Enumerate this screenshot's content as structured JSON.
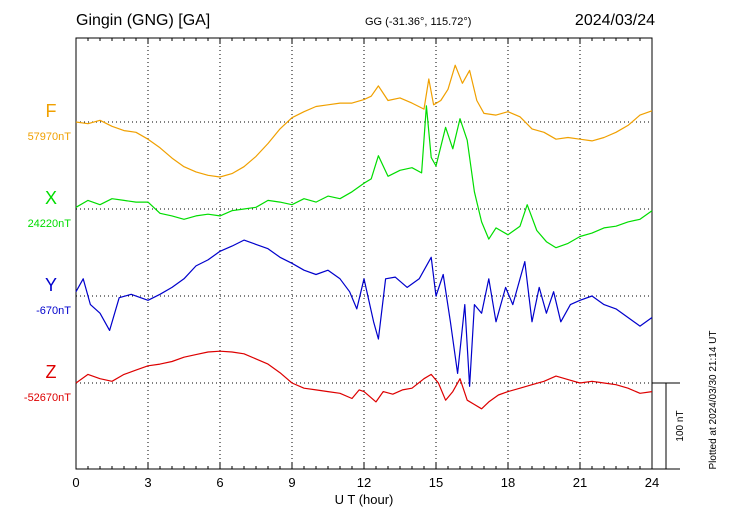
{
  "header": {
    "station": "Gingin (GNG)  [GA]",
    "coords": "GG (-31.36°, 115.72°)",
    "date": "2024/03/24"
  },
  "footer": {
    "xlabel": "U T (hour)",
    "scale_label": "100 nT",
    "plotted": "Plotted at 2024/03/30 21:14 UT"
  },
  "chart_data": {
    "type": "line",
    "title": "Gingin (GNG)  [GA]",
    "xlabel": "U T (hour)",
    "ylabel": "",
    "xlim": [
      0,
      24
    ],
    "xticks": [
      "0",
      "3",
      "6",
      "9",
      "12",
      "15",
      "18",
      "21",
      "24"
    ],
    "grid": true,
    "scale_bar_nT": 100,
    "series": [
      {
        "name": "F",
        "baseline_label": "57970nT",
        "color": "#f0a000",
        "baseline_nT": 57970,
        "points": [
          [
            0,
            57970
          ],
          [
            0.5,
            57968
          ],
          [
            1,
            57972
          ],
          [
            1.5,
            57965
          ],
          [
            2,
            57960
          ],
          [
            2.5,
            57958
          ],
          [
            3,
            57950
          ],
          [
            3.5,
            57940
          ],
          [
            4,
            57928
          ],
          [
            4.5,
            57918
          ],
          [
            5,
            57912
          ],
          [
            5.5,
            57908
          ],
          [
            6,
            57906
          ],
          [
            6.5,
            57910
          ],
          [
            7,
            57918
          ],
          [
            7.5,
            57930
          ],
          [
            8,
            57945
          ],
          [
            8.5,
            57962
          ],
          [
            9,
            57975
          ],
          [
            9.5,
            57982
          ],
          [
            10,
            57988
          ],
          [
            10.5,
            57990
          ],
          [
            11,
            57992
          ],
          [
            11.5,
            57992
          ],
          [
            12,
            57996
          ],
          [
            12.3,
            58000
          ],
          [
            12.6,
            58012
          ],
          [
            13,
            57995
          ],
          [
            13.5,
            57998
          ],
          [
            14,
            57992
          ],
          [
            14.5,
            57985
          ],
          [
            14.7,
            58020
          ],
          [
            14.9,
            57990
          ],
          [
            15.2,
            57995
          ],
          [
            15.5,
            58008
          ],
          [
            15.8,
            58036
          ],
          [
            16.1,
            58015
          ],
          [
            16.4,
            58030
          ],
          [
            16.7,
            57995
          ],
          [
            17,
            57980
          ],
          [
            17.5,
            57978
          ],
          [
            18,
            57982
          ],
          [
            18.5,
            57976
          ],
          [
            19,
            57962
          ],
          [
            19.5,
            57958
          ],
          [
            20,
            57950
          ],
          [
            20.5,
            57952
          ],
          [
            21,
            57950
          ],
          [
            21.5,
            57948
          ],
          [
            22,
            57952
          ],
          [
            22.5,
            57958
          ],
          [
            23,
            57966
          ],
          [
            23.5,
            57978
          ],
          [
            24,
            57983
          ]
        ]
      },
      {
        "name": "X",
        "baseline_label": "24220nT",
        "color": "#00dd00",
        "baseline_nT": 24220,
        "points": [
          [
            0,
            24222
          ],
          [
            0.5,
            24230
          ],
          [
            1,
            24225
          ],
          [
            1.5,
            24232
          ],
          [
            2,
            24230
          ],
          [
            2.5,
            24228
          ],
          [
            3,
            24228
          ],
          [
            3.5,
            24215
          ],
          [
            4,
            24212
          ],
          [
            4.5,
            24208
          ],
          [
            5,
            24212
          ],
          [
            5.5,
            24214
          ],
          [
            6,
            24212
          ],
          [
            6.5,
            24218
          ],
          [
            7,
            24220
          ],
          [
            7.5,
            24222
          ],
          [
            8,
            24230
          ],
          [
            8.5,
            24228
          ],
          [
            9,
            24225
          ],
          [
            9.5,
            24232
          ],
          [
            10,
            24228
          ],
          [
            10.5,
            24235
          ],
          [
            11,
            24232
          ],
          [
            11.5,
            24240
          ],
          [
            12,
            24250
          ],
          [
            12.3,
            24255
          ],
          [
            12.6,
            24282
          ],
          [
            13,
            24258
          ],
          [
            13.5,
            24265
          ],
          [
            14,
            24268
          ],
          [
            14.4,
            24262
          ],
          [
            14.6,
            24340
          ],
          [
            14.8,
            24280
          ],
          [
            15,
            24270
          ],
          [
            15.4,
            24315
          ],
          [
            15.7,
            24290
          ],
          [
            16,
            24325
          ],
          [
            16.3,
            24300
          ],
          [
            16.6,
            24240
          ],
          [
            16.9,
            24205
          ],
          [
            17.2,
            24185
          ],
          [
            17.5,
            24198
          ],
          [
            18,
            24190
          ],
          [
            18.5,
            24200
          ],
          [
            18.8,
            24225
          ],
          [
            19.2,
            24195
          ],
          [
            19.6,
            24182
          ],
          [
            20,
            24175
          ],
          [
            20.5,
            24180
          ],
          [
            21,
            24188
          ],
          [
            21.5,
            24192
          ],
          [
            22,
            24198
          ],
          [
            22.5,
            24200
          ],
          [
            23,
            24205
          ],
          [
            23.5,
            24208
          ],
          [
            24,
            24218
          ]
        ]
      },
      {
        "name": "Y",
        "baseline_label": "-670nT",
        "color": "#0000cc",
        "baseline_nT": -670,
        "points": [
          [
            0,
            -665
          ],
          [
            0.3,
            -650
          ],
          [
            0.6,
            -680
          ],
          [
            1,
            -690
          ],
          [
            1.4,
            -710
          ],
          [
            1.8,
            -672
          ],
          [
            2.3,
            -668
          ],
          [
            3,
            -675
          ],
          [
            3.5,
            -668
          ],
          [
            4,
            -660
          ],
          [
            4.5,
            -650
          ],
          [
            5,
            -635
          ],
          [
            5.5,
            -628
          ],
          [
            6,
            -618
          ],
          [
            6.5,
            -612
          ],
          [
            7,
            -605
          ],
          [
            7.5,
            -610
          ],
          [
            8,
            -615
          ],
          [
            8.5,
            -625
          ],
          [
            9,
            -632
          ],
          [
            9.5,
            -640
          ],
          [
            10,
            -645
          ],
          [
            10.5,
            -640
          ],
          [
            11,
            -650
          ],
          [
            11.4,
            -665
          ],
          [
            11.7,
            -685
          ],
          [
            12,
            -650
          ],
          [
            12.4,
            -700
          ],
          [
            12.6,
            -720
          ],
          [
            12.9,
            -650
          ],
          [
            13.3,
            -648
          ],
          [
            13.8,
            -660
          ],
          [
            14.3,
            -650
          ],
          [
            14.8,
            -625
          ],
          [
            15,
            -670
          ],
          [
            15.3,
            -645
          ],
          [
            15.6,
            -700
          ],
          [
            15.9,
            -760
          ],
          [
            16.2,
            -680
          ],
          [
            16.4,
            -775
          ],
          [
            16.6,
            -680
          ],
          [
            16.9,
            -690
          ],
          [
            17.2,
            -650
          ],
          [
            17.5,
            -700
          ],
          [
            17.9,
            -660
          ],
          [
            18.2,
            -680
          ],
          [
            18.5,
            -650
          ],
          [
            18.7,
            -630
          ],
          [
            19,
            -700
          ],
          [
            19.3,
            -660
          ],
          [
            19.6,
            -690
          ],
          [
            19.9,
            -665
          ],
          [
            20.2,
            -700
          ],
          [
            20.6,
            -680
          ],
          [
            21,
            -675
          ],
          [
            21.5,
            -670
          ],
          [
            22,
            -680
          ],
          [
            22.5,
            -685
          ],
          [
            23,
            -695
          ],
          [
            23.5,
            -705
          ],
          [
            24,
            -695
          ]
        ]
      },
      {
        "name": "Z",
        "baseline_label": "-52670nT",
        "color": "#dd0000",
        "baseline_nT": -52670,
        "points": [
          [
            0,
            -52670
          ],
          [
            0.5,
            -52660
          ],
          [
            1,
            -52665
          ],
          [
            1.5,
            -52668
          ],
          [
            2,
            -52660
          ],
          [
            2.5,
            -52655
          ],
          [
            3,
            -52650
          ],
          [
            3.5,
            -52648
          ],
          [
            4,
            -52645
          ],
          [
            4.5,
            -52640
          ],
          [
            5,
            -52637
          ],
          [
            5.5,
            -52634
          ],
          [
            6,
            -52633
          ],
          [
            6.5,
            -52634
          ],
          [
            7,
            -52636
          ],
          [
            7.5,
            -52642
          ],
          [
            8,
            -52648
          ],
          [
            8.5,
            -52658
          ],
          [
            9,
            -52670
          ],
          [
            9.5,
            -52676
          ],
          [
            10,
            -52678
          ],
          [
            10.5,
            -52680
          ],
          [
            11,
            -52682
          ],
          [
            11.5,
            -52688
          ],
          [
            11.8,
            -52678
          ],
          [
            12,
            -52680
          ],
          [
            12.5,
            -52692
          ],
          [
            12.8,
            -52680
          ],
          [
            13.2,
            -52683
          ],
          [
            13.6,
            -52678
          ],
          [
            14,
            -52676
          ],
          [
            14.5,
            -52665
          ],
          [
            14.8,
            -52660
          ],
          [
            15.1,
            -52670
          ],
          [
            15.4,
            -52690
          ],
          [
            15.7,
            -52680
          ],
          [
            16,
            -52665
          ],
          [
            16.3,
            -52690
          ],
          [
            16.6,
            -52695
          ],
          [
            16.9,
            -52700
          ],
          [
            17.2,
            -52692
          ],
          [
            17.6,
            -52684
          ],
          [
            18,
            -52680
          ],
          [
            18.5,
            -52676
          ],
          [
            19,
            -52672
          ],
          [
            19.5,
            -52668
          ],
          [
            20,
            -52662
          ],
          [
            20.5,
            -52666
          ],
          [
            21,
            -52670
          ],
          [
            21.5,
            -52668
          ],
          [
            22,
            -52670
          ],
          [
            22.5,
            -52672
          ],
          [
            23,
            -52676
          ],
          [
            23.5,
            -52682
          ],
          [
            24,
            -52680
          ]
        ]
      }
    ]
  }
}
